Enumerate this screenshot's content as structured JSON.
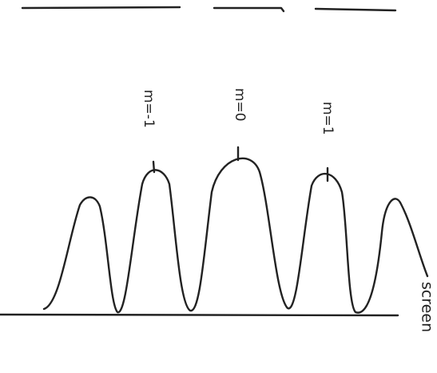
{
  "labels": [
    "m=-1",
    "m=0",
    "m=1"
  ],
  "screen": "screen"
}
